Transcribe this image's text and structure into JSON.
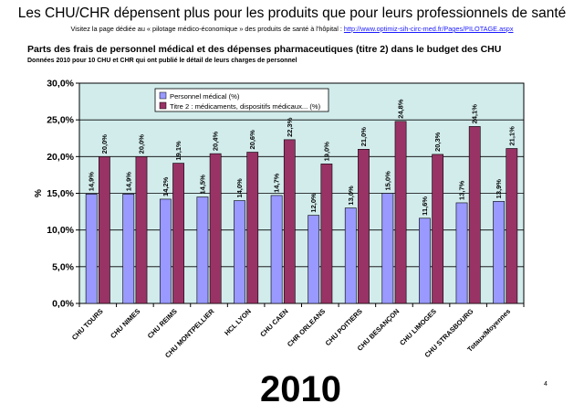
{
  "slide": {
    "title": "Les CHU/CHR dépensent plus pour les produits que pour leurs professionnels de santé",
    "subtitle_text": "Visitez la page dédiée au « pilotage médico-économique » des produits de santé à l'hôpital : ",
    "subtitle_link": "http://www.optimiz-sih-circ-med.fr/Pages/PILOTAGE.aspx",
    "year": "2010",
    "page_number": "4"
  },
  "chart_data": {
    "type": "bar",
    "title": "Parts des frais de personnel médical et des dépenses pharmaceutiques (titre 2) dans le budget des CHU",
    "note": "Données  2010 pour 10 CHU et CHR qui ont publié le détail de leurs charges de personnel",
    "ylabel": "%",
    "ylim": [
      0,
      30
    ],
    "yticks": [
      "0,0%",
      "5,0%",
      "10,0%",
      "15,0%",
      "20,0%",
      "25,0%",
      "30,0%"
    ],
    "ytick_values": [
      0,
      5,
      10,
      15,
      20,
      25,
      30
    ],
    "grid": true,
    "legend_position": "top-left",
    "categories": [
      "CHU TOURS",
      "CHU NIMES",
      "CHU REIMS",
      "CHU MONTPELLIER",
      "HCL LYON",
      "CHU CAEN",
      "CHR ORLEANS",
      "CHU POITIERS",
      "CHU BESANÇON",
      "CHU LIMOGES",
      "CHU STRASBOURG",
      "Totaux/Moyennes"
    ],
    "series": [
      {
        "name": "Personnel médical (%)",
        "color": "#9999ff",
        "values": [
          14.9,
          14.9,
          14.2,
          14.5,
          14.0,
          14.7,
          12.0,
          13.0,
          15.0,
          11.6,
          13.7,
          13.9
        ],
        "labels": [
          "14,9%",
          "14,9%",
          "14,2%",
          "14,5%",
          "14,0%",
          "14,7%",
          "12,0%",
          "13,0%",
          "15,0%",
          "11,6%",
          "13,7%",
          "13,9%"
        ]
      },
      {
        "name": "Titre 2 : médicaments, dispositifs médicaux... (%)",
        "color": "#993366",
        "values": [
          20.0,
          20.0,
          19.1,
          20.4,
          20.6,
          22.3,
          19.0,
          21.0,
          24.8,
          20.3,
          24.1,
          21.1
        ],
        "labels": [
          "20,0%",
          "20,0%",
          "19,1%",
          "20,4%",
          "20,6%",
          "22,3%",
          "19,0%",
          "21,0%",
          "24,8%",
          "20,3%",
          "24,1%",
          "21,1%"
        ]
      }
    ],
    "colors": {
      "plot_background": "#d2ecec",
      "grid": "#000000"
    }
  }
}
